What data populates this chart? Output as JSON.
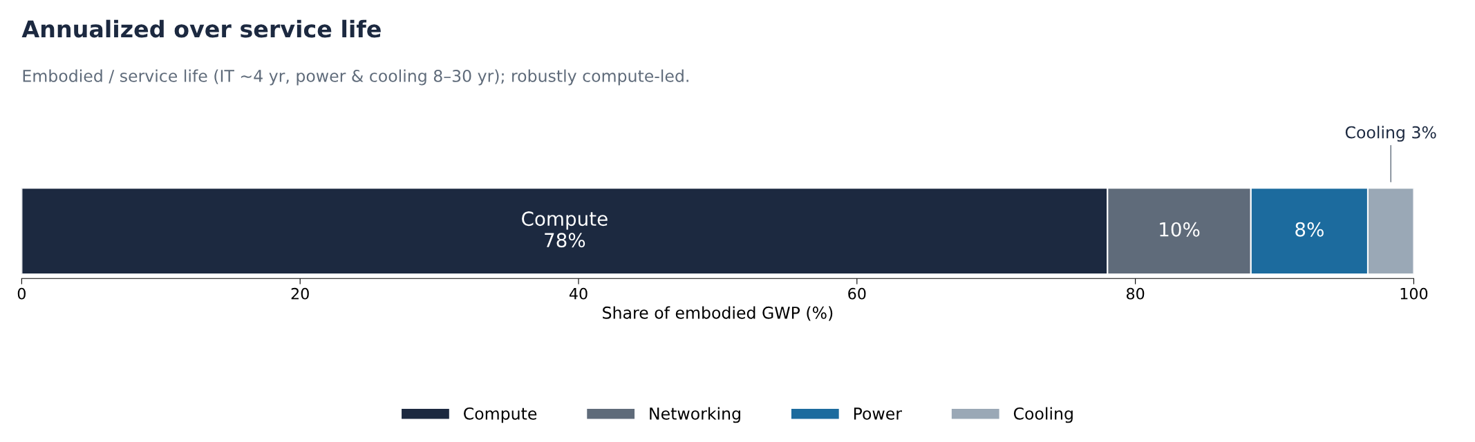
{
  "chart_data": {
    "type": "bar",
    "orientation": "horizontal",
    "stacked": true,
    "title": "Annualized over service life",
    "subtitle": "Embodied / service life (IT ~4 yr, power & cooling 8–30 yr); robustly compute-led.",
    "xlabel": "Share of embodied GWP (%)",
    "categories": [
      null
    ],
    "series": [
      {
        "name": "Compute",
        "color": "#1c2940",
        "values": [
          78
        ],
        "value_labels": [
          "Compute\n78%"
        ]
      },
      {
        "name": "Networking",
        "color": "#5f6b7a",
        "values": [
          10.3
        ],
        "value_labels": [
          "10%"
        ]
      },
      {
        "name": "Power",
        "color": "#1c6b9e",
        "values": [
          8.4
        ],
        "value_labels": [
          "8%"
        ]
      },
      {
        "name": "Cooling",
        "color": "#9aa8b6",
        "values": [
          3.3
        ],
        "value_labels": [
          "Cooling 3%"
        ]
      }
    ],
    "xlim": [
      0,
      100
    ],
    "xticks": [
      0,
      20,
      40,
      60,
      80,
      100
    ],
    "tick_labels": "x",
    "grid": false,
    "legend": "bottom"
  }
}
